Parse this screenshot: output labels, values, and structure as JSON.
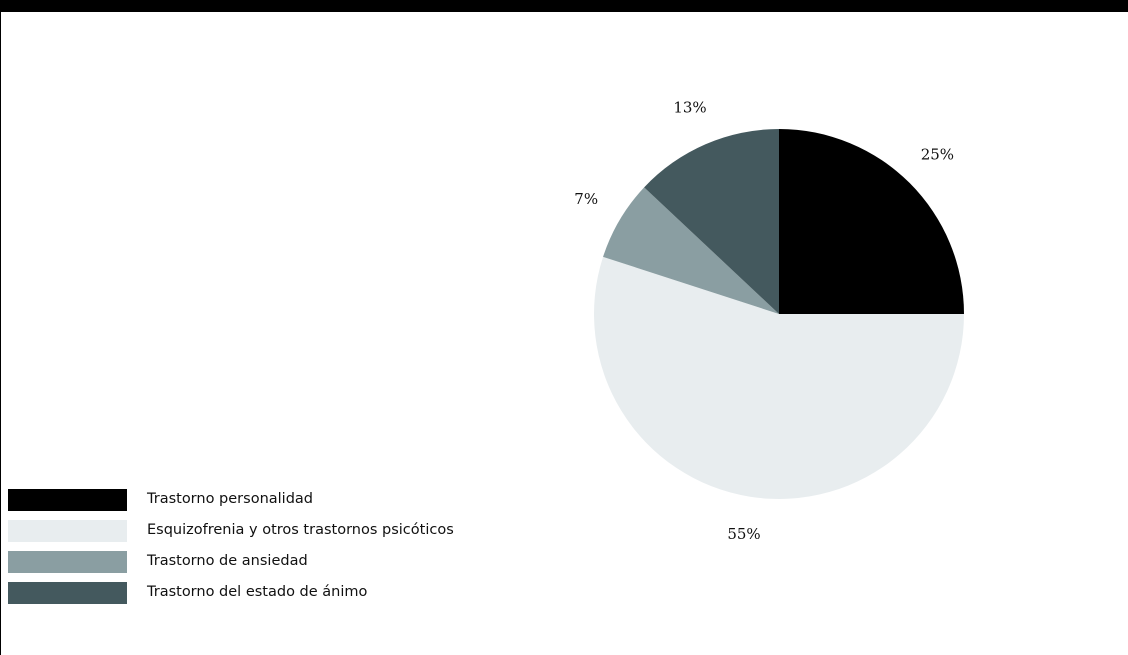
{
  "chart_data": {
    "type": "pie",
    "title": "",
    "categories": [
      "Trastorno personalidad",
      "Esquizofrenia y otros trastornos psicóticos",
      "Trastorno de ansiedad",
      "Trastorno del estado de ánimo"
    ],
    "values": [
      25,
      55,
      7,
      13
    ],
    "value_labels": [
      "25%",
      "55%",
      "7%",
      "13%"
    ],
    "colors": [
      "#000000",
      "#e8edef",
      "#8a9ea2",
      "#44595e"
    ],
    "start_angle_deg": 0,
    "direction": "clockwise-from-top",
    "legend_position": "bottom-left"
  }
}
